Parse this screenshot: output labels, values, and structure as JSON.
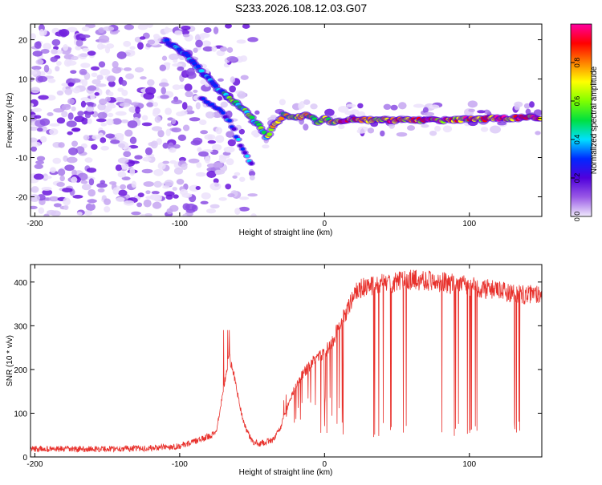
{
  "chart_data": [
    {
      "type": "heatmap",
      "title": "S233.2026.108.12.03.G07",
      "xlabel": "Height of straight line (km)",
      "ylabel": "Frequency (Hz)",
      "xlim": [
        -203,
        150
      ],
      "ylim": [
        -25,
        24
      ],
      "xticks": [
        -200,
        -100,
        0,
        100
      ],
      "xtick_labels": [
        "-200",
        "-100",
        "0",
        "100"
      ],
      "yticks": [
        -20,
        -10,
        0,
        10,
        20
      ],
      "ytick_labels": [
        "-20",
        "-10",
        "0",
        "10",
        "20"
      ],
      "ridge": {
        "x": [
          -110,
          -95,
          -85,
          -75,
          -65,
          -55,
          -45,
          -40,
          -35,
          -28,
          -20,
          -12,
          -5,
          0,
          5,
          10,
          20,
          40,
          60,
          80,
          100,
          120,
          150
        ],
        "y": [
          20,
          16,
          12,
          8,
          5,
          2,
          -2,
          -5,
          -2,
          1,
          0,
          1,
          -1,
          0,
          -1,
          -0.5,
          -0.5,
          -0.5,
          -0.5,
          -0.5,
          -0.3,
          0,
          0.2
        ]
      },
      "lower_branch": {
        "x": [
          -85,
          -75,
          -65,
          -58,
          -50
        ],
        "y": [
          5,
          3,
          -1,
          -7,
          -12
        ]
      },
      "colorbar": {
        "label": "Normalized spectral amplitude",
        "ticks": [
          0.0,
          0.2,
          0.4,
          0.6,
          0.8
        ],
        "tick_labels": [
          "0.0",
          "0.2",
          "0.4",
          "0.6",
          "0.8"
        ],
        "range": [
          0,
          1
        ],
        "colors": [
          "#f0eafc",
          "#9a5ae6",
          "#5000dc",
          "#0028ff",
          "#00e0ff",
          "#00e040",
          "#80ff00",
          "#ffff00",
          "#ff8000",
          "#ff0000",
          "#ff00a0"
        ]
      }
    },
    {
      "type": "line",
      "xlabel": "Height of straight line (km)",
      "ylabel": "SNR (10 * v/v)",
      "xlim": [
        -203,
        150
      ],
      "ylim": [
        0,
        440
      ],
      "xticks": [
        -200,
        -100,
        0,
        100
      ],
      "xtick_labels": [
        "-200",
        "-100",
        "0",
        "100"
      ],
      "yticks": [
        0,
        100,
        200,
        300,
        400
      ],
      "ytick_labels": [
        "0",
        "100",
        "200",
        "300",
        "400"
      ],
      "series": [
        {
          "name": "SNR",
          "color": "#e8312c",
          "x": [
            -203,
            -160,
            -120,
            -100,
            -85,
            -75,
            -70,
            -66,
            -62,
            -58,
            -55,
            -50,
            -45,
            -40,
            -35,
            -30,
            -25,
            -20,
            -15,
            -10,
            -5,
            0,
            5,
            10,
            15,
            20,
            25,
            30,
            40,
            50,
            60,
            70,
            80,
            90,
            100,
            110,
            120,
            130,
            140,
            150
          ],
          "y": [
            18,
            18,
            20,
            25,
            40,
            55,
            150,
            230,
            180,
            110,
            70,
            35,
            30,
            35,
            40,
            70,
            120,
            160,
            190,
            210,
            230,
            240,
            260,
            300,
            330,
            370,
            385,
            390,
            395,
            400,
            405,
            405,
            400,
            395,
            390,
            385,
            380,
            375,
            370,
            375
          ]
        }
      ]
    }
  ]
}
